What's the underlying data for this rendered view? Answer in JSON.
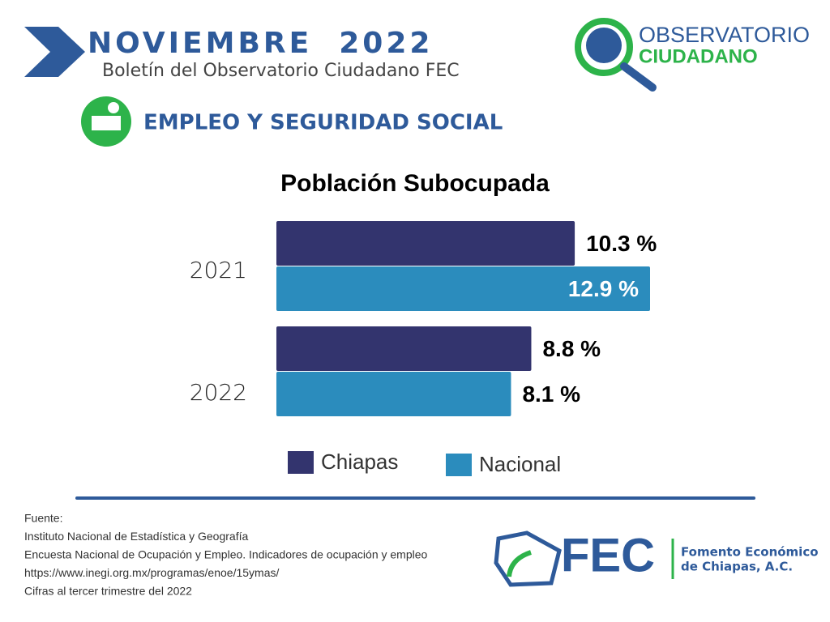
{
  "header": {
    "title": "NOVIEMBRE  2022",
    "subtitle": "Boletín del Observatorio Ciudadano FEC",
    "logo_line1": "OBSERVATORIO",
    "logo_line2": "CIUDADANO",
    "section": "EMPLEO Y SEGURIDAD SOCIAL"
  },
  "chart_data": {
    "type": "hbar",
    "title": "Población Subocupada",
    "categories": [
      "2021",
      "2022"
    ],
    "series": [
      {
        "name": "Chiapas",
        "color": "#33346e",
        "values": [
          10.3,
          8.8
        ],
        "value_labels": [
          "10.3 %",
          "8.8 %"
        ]
      },
      {
        "name": "Nacional",
        "color": "#2b8cbd",
        "values": [
          12.9,
          8.1
        ],
        "value_labels": [
          "12.9 %",
          "8.1 %"
        ]
      }
    ]
  },
  "footer": {
    "lines": [
      "Fuente:",
      "Instituto Nacional de Estadística y Geografía",
      "Encuesta Nacional de Ocupación y Empleo. Indicadores de ocupación y empleo",
      "https://www.inegi.org.mx/programas/enoe/15ymas/",
      "Cifras al tercer trimestre del 2022"
    ],
    "logo": "FEC",
    "org_line1": "Fomento Económico",
    "org_line2": "de Chiapas, A.C."
  }
}
